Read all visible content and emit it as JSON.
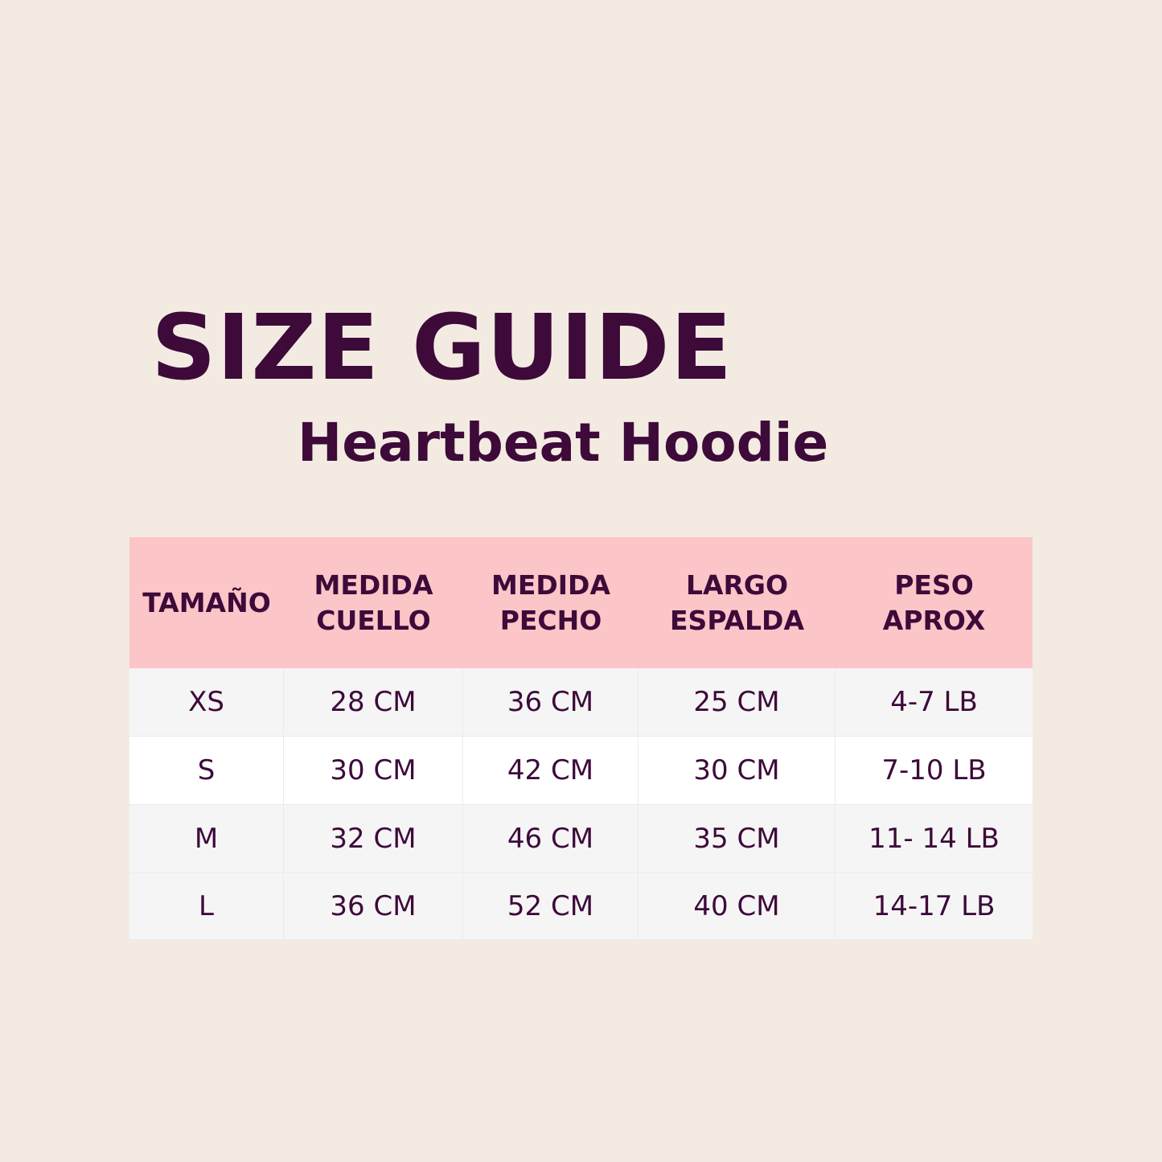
{
  "header": {
    "title": "SIZE GUIDE",
    "subtitle": "Heartbeat Hoodie"
  },
  "table": {
    "columns": [
      [
        "TAMAÑO"
      ],
      [
        "MEDIDA",
        "CUELLO"
      ],
      [
        "MEDIDA",
        "PECHO"
      ],
      [
        "LARGO",
        "ESPALDA"
      ],
      [
        "PESO",
        "APROX"
      ]
    ],
    "rows": [
      [
        "XS",
        "28 CM",
        "36 CM",
        "25 CM",
        "4-7 LB"
      ],
      [
        "S",
        "30 CM",
        "42 CM",
        "30 CM",
        "7-10 LB"
      ],
      [
        "M",
        "32 CM",
        "46 CM",
        "35 CM",
        "11- 14 LB"
      ],
      [
        "L",
        "36 CM",
        "52 CM",
        "40 CM",
        "14-17 LB"
      ]
    ]
  }
}
